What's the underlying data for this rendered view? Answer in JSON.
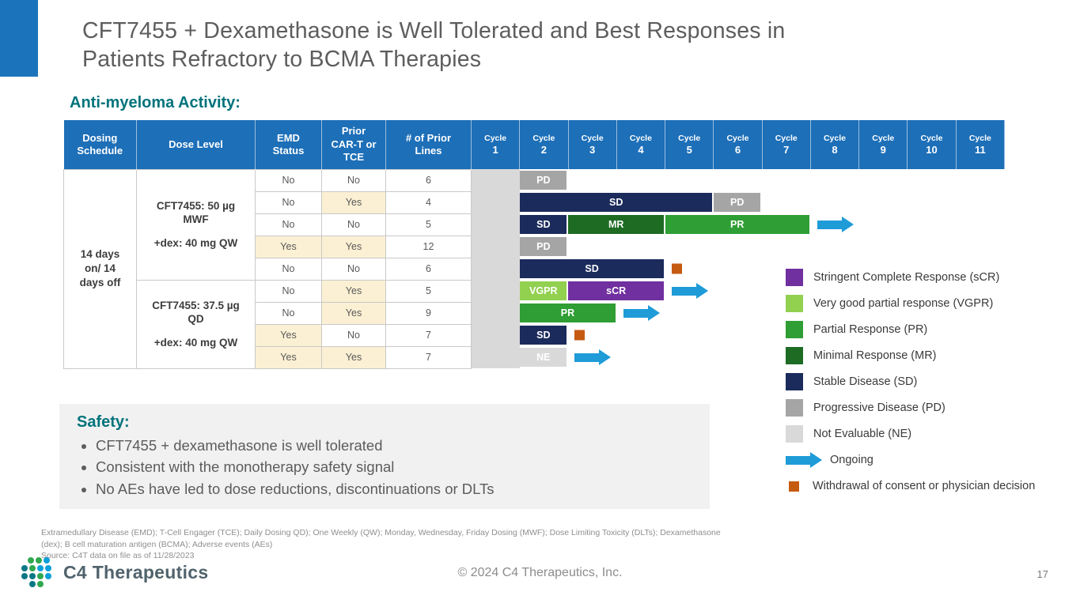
{
  "slide": {
    "title": "CFT7455 + Dexamethasone is Well Tolerated and Best Responses in Patients Refractory to BCMA Therapies",
    "section_heading": "Anti-myeloma Activity:",
    "copyright": "© 2024 C4 Therapeutics, Inc.",
    "page_number": "17",
    "logo_text": "C4 Therapeutics",
    "footnote_line1": "Extramedullary Disease (EMD); T-Cell Engager (TCE); Daily Dosing QD); One Weekly (QW); Monday, Wednesday, Friday Dosing (MWF); Dose Limiting Toxicity (DLTs); Dexamethasone (dex); B cell maturation antigen (BCMA); Adverse events (AEs)",
    "footnote_line2": "Source: C4T data on file as of 11/28/2023"
  },
  "table": {
    "col_headers": [
      "Dosing Schedule",
      "Dose Level",
      "EMD Status",
      "Prior CAR-T or TCE",
      "# of Prior Lines"
    ]
  },
  "chart_data": {
    "type": "bar",
    "subtype": "swimmer-plot",
    "title": "Anti-myeloma Activity",
    "x_axis_categories": [
      "Cycle 1",
      "Cycle 2",
      "Cycle 3",
      "Cycle 4",
      "Cycle 5",
      "Cycle 6",
      "Cycle 7",
      "Cycle 8",
      "Cycle 9",
      "Cycle 10",
      "Cycle 11"
    ],
    "dosing_schedule": "14 days on/ 14 days off",
    "cycle1_shaded": true,
    "response_colors": {
      "sCR": "#7030A0",
      "VGPR": "#92D050",
      "PR": "#2F9E34",
      "MR": "#1E6B24",
      "SD": "#1B2B5C",
      "PD": "#A5A5A5",
      "NE": "#D9D9D9"
    },
    "groups": [
      {
        "dose_level_lines": [
          "CFT7455: 50 µg MWF",
          "+dex: 40 mg QW"
        ],
        "patients": [
          {
            "emd": "No",
            "prior_cart_tce": "No",
            "prior_lines": "6",
            "segments": [
              {
                "response": "PD",
                "start": 2,
                "span": 1
              }
            ],
            "end_marker": null
          },
          {
            "emd": "No",
            "prior_cart_tce": "Yes",
            "prior_lines": "4",
            "segments": [
              {
                "response": "SD",
                "start": 2,
                "span": 4
              },
              {
                "response": "PD",
                "start": 6,
                "span": 1
              }
            ],
            "end_marker": null
          },
          {
            "emd": "No",
            "prior_cart_tce": "No",
            "prior_lines": "5",
            "segments": [
              {
                "response": "SD",
                "start": 2,
                "span": 1
              },
              {
                "response": "MR",
                "start": 3,
                "span": 2
              },
              {
                "response": "PR",
                "start": 5,
                "span": 3
              }
            ],
            "end_marker": "ongoing"
          },
          {
            "emd": "Yes",
            "prior_cart_tce": "Yes",
            "prior_lines": "12",
            "segments": [
              {
                "response": "PD",
                "start": 2,
                "span": 1
              }
            ],
            "end_marker": null
          },
          {
            "emd": "No",
            "prior_cart_tce": "No",
            "prior_lines": "6",
            "segments": [
              {
                "response": "SD",
                "start": 2,
                "span": 3
              }
            ],
            "end_marker": "withdrawal"
          }
        ]
      },
      {
        "dose_level_lines": [
          "CFT7455: 37.5 µg QD",
          "+dex: 40 mg QW"
        ],
        "patients": [
          {
            "emd": "No",
            "prior_cart_tce": "Yes",
            "prior_lines": "5",
            "segments": [
              {
                "response": "VGPR",
                "start": 2,
                "span": 1
              },
              {
                "response": "sCR",
                "start": 3,
                "span": 2
              }
            ],
            "end_marker": "ongoing"
          },
          {
            "emd": "No",
            "prior_cart_tce": "Yes",
            "prior_lines": "9",
            "segments": [
              {
                "response": "PR",
                "start": 2,
                "span": 2
              }
            ],
            "end_marker": "ongoing"
          },
          {
            "emd": "Yes",
            "prior_cart_tce": "No",
            "prior_lines": "7",
            "segments": [
              {
                "response": "SD",
                "start": 2,
                "span": 1
              }
            ],
            "end_marker": "withdrawal"
          },
          {
            "emd": "Yes",
            "prior_cart_tce": "Yes",
            "prior_lines": "7",
            "segments": [
              {
                "response": "NE",
                "start": 2,
                "span": 1
              }
            ],
            "end_marker": "ongoing"
          }
        ]
      }
    ]
  },
  "legend": {
    "items": [
      {
        "swatch": "sCR",
        "label": "Stringent Complete Response (sCR)"
      },
      {
        "swatch": "VGPR",
        "label": "Very good partial response (VGPR)"
      },
      {
        "swatch": "PR",
        "label": "Partial Response (PR)"
      },
      {
        "swatch": "MR",
        "label": "Minimal Response (MR)"
      },
      {
        "swatch": "SD",
        "label": "Stable Disease (SD)"
      },
      {
        "swatch": "PD",
        "label": "Progressive Disease (PD)"
      },
      {
        "swatch": "NE",
        "label": "Not Evaluable (NE)"
      },
      {
        "swatch": "arrow",
        "label": "Ongoing"
      },
      {
        "swatch": "orange-square",
        "label": "Withdrawal of consent or physician decision"
      }
    ]
  },
  "safety": {
    "heading": "Safety:",
    "bullets": [
      "CFT7455 + dexamethasone is well tolerated",
      "Consistent with the monotherapy safety signal",
      "No AEs have led to dose reductions, discontinuations or DLTs"
    ]
  },
  "colors": {
    "header_blue": "#1D6FB8",
    "accent_teal": "#00737B",
    "ongoing_arrow_blue": "#1F9BD8",
    "withdrawal_orange": "#C55A11",
    "yes_cell_bg": "#FBF0D3",
    "cycle1_shade": "#D9D9D9",
    "title_gray": "#5D5D5D"
  }
}
